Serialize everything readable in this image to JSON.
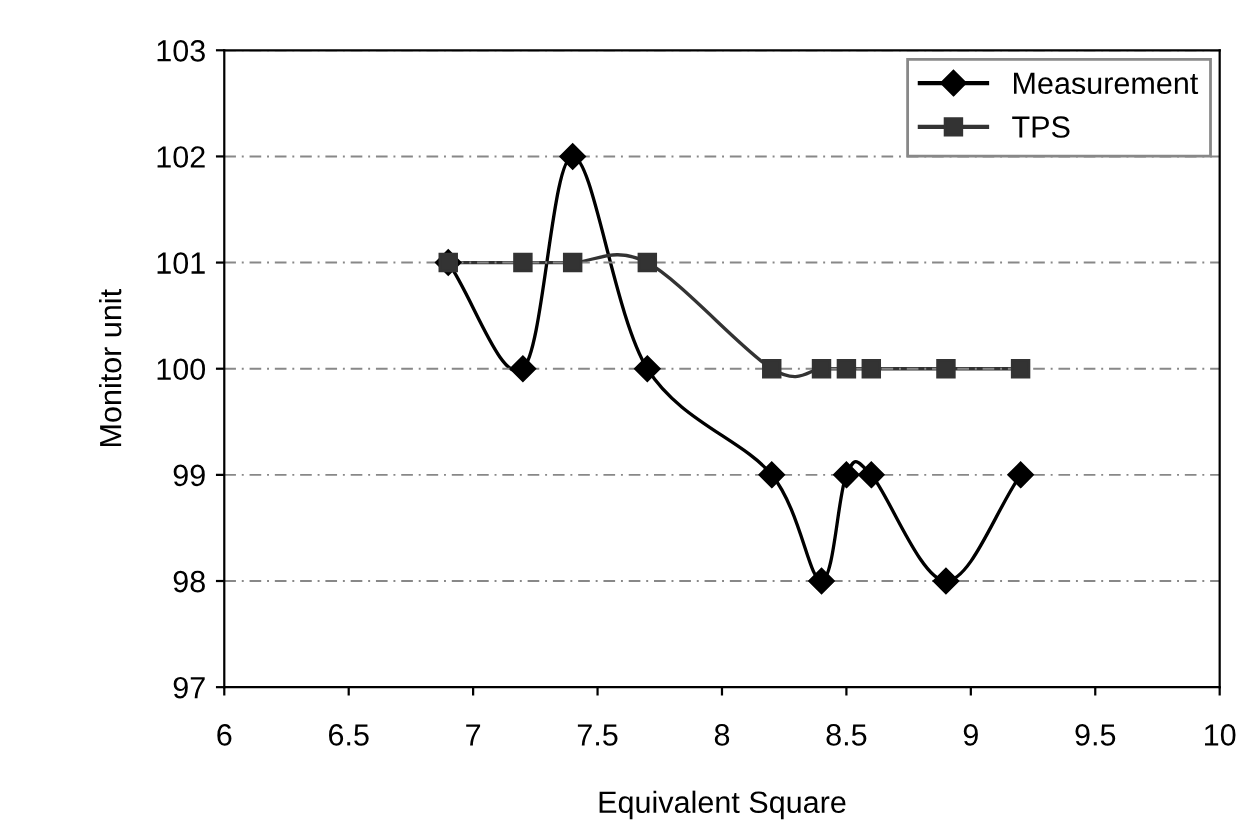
{
  "chart_data": {
    "type": "line",
    "xlabel": "Equivalent Square",
    "ylabel": "Monitor unit",
    "xlim": [
      6,
      10
    ],
    "xticks": [
      6,
      6.5,
      7,
      7.5,
      8,
      8.5,
      9,
      9.5,
      10
    ],
    "ylim": [
      97,
      103
    ],
    "yticks": [
      97,
      98,
      99,
      100,
      101,
      102,
      103
    ],
    "grid": "y",
    "legend": "top right",
    "line_style": "solid",
    "series": [
      {
        "name": "Measurement",
        "color": "#000000",
        "marker": "diamond",
        "x": [
          6.9,
          7.2,
          7.4,
          7.7,
          8.2,
          8.4,
          8.5,
          8.6,
          8.9,
          9.2
        ],
        "values": [
          101,
          100,
          102,
          100,
          99,
          98,
          99,
          99,
          98,
          99
        ]
      },
      {
        "name": "TPS",
        "color": "#333333",
        "marker": "square",
        "x": [
          6.9,
          7.2,
          7.4,
          7.7,
          8.2,
          8.4,
          8.5,
          8.6,
          8.9,
          9.2
        ],
        "values": [
          101,
          101,
          101,
          101,
          100,
          100,
          100,
          100,
          100,
          100
        ]
      }
    ]
  }
}
